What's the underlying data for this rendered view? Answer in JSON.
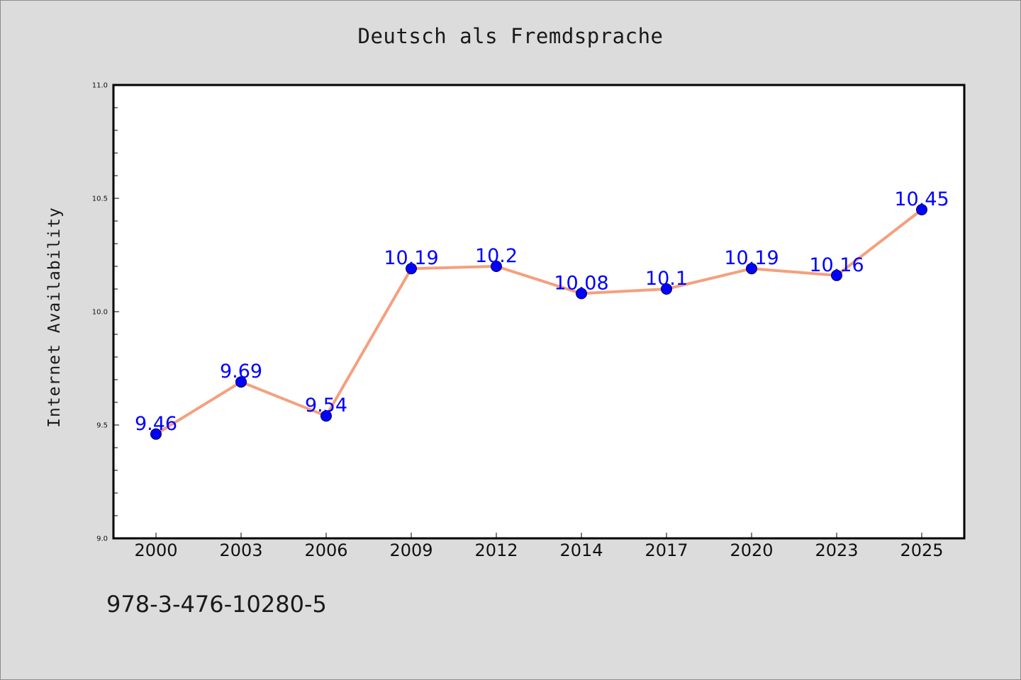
{
  "chart_data": {
    "type": "line",
    "title": "Deutsch als Fremdsprache",
    "xlabel": "",
    "ylabel": "Internet Availability",
    "categories": [
      "2000",
      "2003",
      "2006",
      "2009",
      "2012",
      "2014",
      "2017",
      "2020",
      "2023",
      "2025"
    ],
    "values": [
      9.46,
      9.69,
      9.54,
      10.19,
      10.2,
      10.08,
      10.1,
      10.19,
      10.16,
      10.45
    ],
    "data_labels": [
      "9.46",
      "9.69",
      "9.54",
      "10.19",
      "10.2",
      "10.08",
      "10.1",
      "10.19",
      "10.16",
      "10.45"
    ],
    "ylim": [
      9.0,
      11.0
    ],
    "yticks": [
      "9.0",
      "9.5",
      "10.0",
      "10.5",
      "11.0"
    ],
    "grid": false,
    "colors": {
      "line": "#f4a07e",
      "marker": "#0000ff",
      "label": "#0000ff",
      "background": "#dcdcdc",
      "plot_background": "#ffffff"
    }
  },
  "footnote": "978-3-476-10280-5"
}
